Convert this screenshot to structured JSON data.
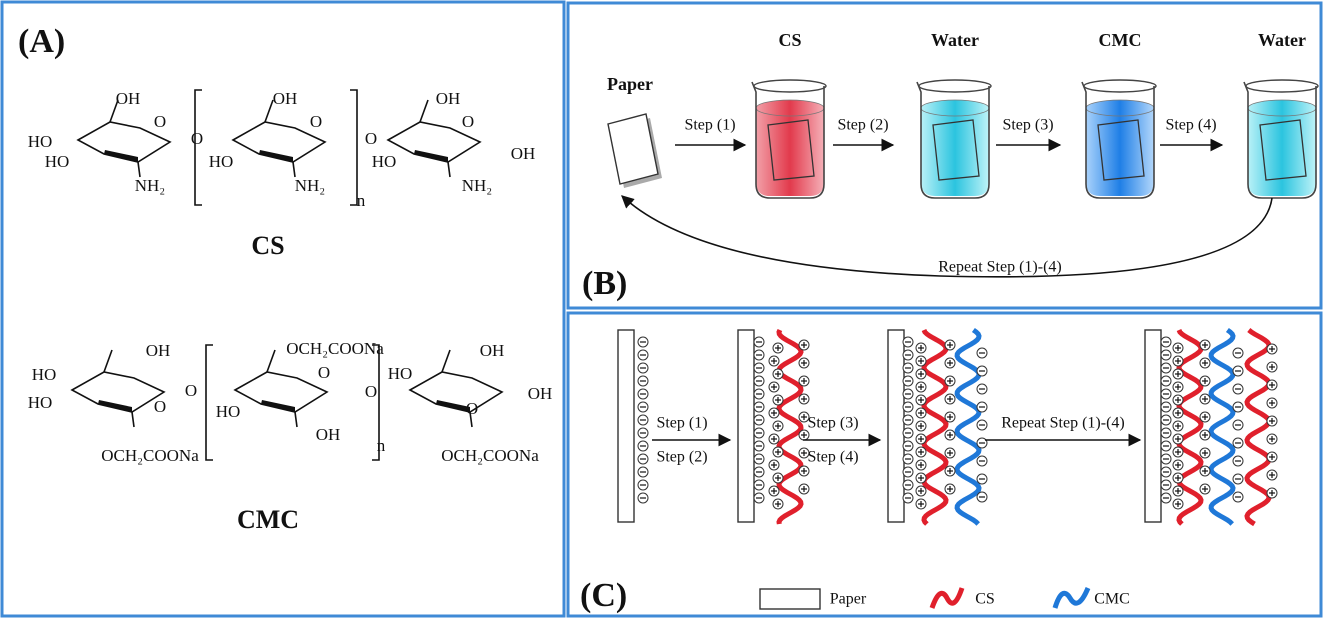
{
  "panel_a": {
    "label": "(A)",
    "cs": {
      "name": "CS",
      "atoms": [
        "OH",
        "O",
        "HO",
        "HO",
        "NH₂",
        "O",
        "OH",
        "O",
        "HO",
        "NH₂",
        "n",
        "O",
        "OH",
        "O",
        "HO",
        "NH₂",
        "OH"
      ]
    },
    "cmc": {
      "name": "CMC",
      "atoms": [
        "OH",
        "HO",
        "HO",
        "O",
        "OCH₂COONa",
        "O",
        "OCH₂COONa",
        "O",
        "HO",
        "OH",
        "n",
        "O",
        "HO",
        "OH",
        "O",
        "OH",
        "OCH₂COONa"
      ]
    }
  },
  "panel_b": {
    "label": "(B)",
    "paper": "Paper",
    "beakers": [
      "CS",
      "Water",
      "CMC",
      "Water"
    ],
    "steps": [
      "Step (1)",
      "Step (2)",
      "Step (3)",
      "Step (4)"
    ],
    "repeat": "Repeat Step (1)-(4)"
  },
  "panel_c": {
    "label": "(C)",
    "steps": [
      "Step (1)",
      "Step (2)",
      "Step (3)",
      "Step (4)"
    ],
    "repeat": "Repeat Step (1)-(4)",
    "legend": [
      "Paper",
      "CS",
      "CMC"
    ]
  }
}
